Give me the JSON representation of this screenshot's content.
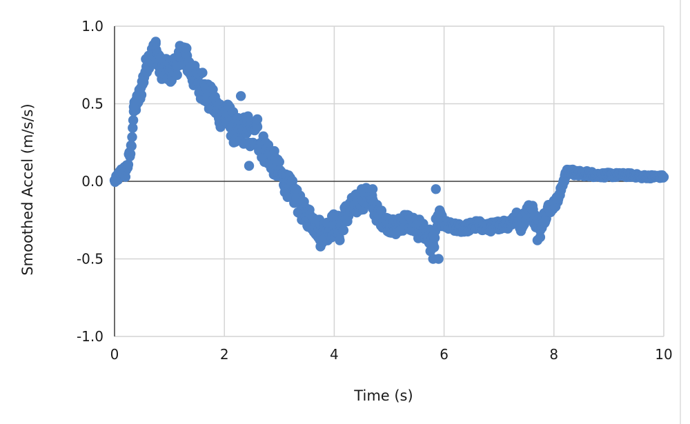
{
  "chart_data": {
    "type": "scatter",
    "xlabel": "Time (s)",
    "ylabel": "Smoothed Accel (m/s/s)",
    "xlim": [
      0,
      10
    ],
    "ylim": [
      -1.0,
      1.0
    ],
    "x_ticks": [
      "0",
      "2",
      "4",
      "6",
      "8",
      "10"
    ],
    "y_ticks": [
      "-1.0",
      "-0.5",
      "0.0",
      "0.5",
      "1.0"
    ],
    "grid": true,
    "legend": "none",
    "series": [
      {
        "color": "#4e81c4",
        "key_points": [
          [
            0.0,
            0.0
          ],
          [
            0.05,
            0.02
          ],
          [
            0.1,
            0.05
          ],
          [
            0.15,
            0.07
          ],
          [
            0.2,
            0.06
          ],
          [
            0.25,
            0.12
          ],
          [
            0.3,
            0.2
          ],
          [
            0.32,
            0.32
          ],
          [
            0.35,
            0.45
          ],
          [
            0.4,
            0.5
          ],
          [
            0.45,
            0.55
          ],
          [
            0.5,
            0.62
          ],
          [
            0.55,
            0.7
          ],
          [
            0.6,
            0.78
          ],
          [
            0.65,
            0.8
          ],
          [
            0.7,
            0.82
          ],
          [
            0.75,
            0.88
          ],
          [
            0.8,
            0.75
          ],
          [
            0.9,
            0.72
          ],
          [
            1.0,
            0.7
          ],
          [
            1.1,
            0.74
          ],
          [
            1.2,
            0.8
          ],
          [
            1.25,
            0.85
          ],
          [
            1.3,
            0.8
          ],
          [
            1.4,
            0.7
          ],
          [
            1.5,
            0.65
          ],
          [
            1.6,
            0.6
          ],
          [
            1.7,
            0.55
          ],
          [
            1.8,
            0.5
          ],
          [
            1.9,
            0.45
          ],
          [
            2.0,
            0.42
          ],
          [
            2.1,
            0.4
          ],
          [
            2.2,
            0.32
          ],
          [
            2.3,
            0.3
          ],
          [
            2.4,
            0.35
          ],
          [
            2.5,
            0.28
          ],
          [
            2.6,
            0.3
          ],
          [
            2.7,
            0.22
          ],
          [
            2.8,
            0.18
          ],
          [
            2.9,
            0.12
          ],
          [
            3.0,
            0.05
          ],
          [
            3.1,
            0.0
          ],
          [
            3.2,
            -0.05
          ],
          [
            3.3,
            -0.1
          ],
          [
            3.4,
            -0.18
          ],
          [
            3.5,
            -0.22
          ],
          [
            3.6,
            -0.25
          ],
          [
            3.7,
            -0.3
          ],
          [
            3.8,
            -0.33
          ],
          [
            3.9,
            -0.3
          ],
          [
            4.0,
            -0.28
          ],
          [
            4.1,
            -0.3
          ],
          [
            4.2,
            -0.22
          ],
          [
            4.3,
            -0.18
          ],
          [
            4.4,
            -0.15
          ],
          [
            4.5,
            -0.12
          ],
          [
            4.6,
            -0.1
          ],
          [
            4.7,
            -0.15
          ],
          [
            4.8,
            -0.22
          ],
          [
            4.9,
            -0.25
          ],
          [
            5.0,
            -0.28
          ],
          [
            5.1,
            -0.3
          ],
          [
            5.2,
            -0.28
          ],
          [
            5.3,
            -0.25
          ],
          [
            5.4,
            -0.27
          ],
          [
            5.5,
            -0.3
          ],
          [
            5.6,
            -0.32
          ],
          [
            5.7,
            -0.35
          ],
          [
            5.8,
            -0.4
          ],
          [
            5.85,
            -0.3
          ],
          [
            5.9,
            -0.22
          ],
          [
            6.0,
            -0.28
          ],
          [
            6.2,
            -0.3
          ],
          [
            6.4,
            -0.3
          ],
          [
            6.6,
            -0.28
          ],
          [
            6.8,
            -0.3
          ],
          [
            7.0,
            -0.28
          ],
          [
            7.2,
            -0.27
          ],
          [
            7.3,
            -0.22
          ],
          [
            7.4,
            -0.28
          ],
          [
            7.5,
            -0.2
          ],
          [
            7.6,
            -0.18
          ],
          [
            7.7,
            -0.3
          ],
          [
            7.8,
            -0.24
          ],
          [
            7.9,
            -0.18
          ],
          [
            8.0,
            -0.15
          ],
          [
            8.1,
            -0.1
          ],
          [
            8.15,
            -0.02
          ],
          [
            8.2,
            0.03
          ],
          [
            8.25,
            0.06
          ],
          [
            8.3,
            0.07
          ],
          [
            8.4,
            0.05
          ],
          [
            8.6,
            0.05
          ],
          [
            8.8,
            0.04
          ],
          [
            9.0,
            0.04
          ],
          [
            9.2,
            0.04
          ],
          [
            9.4,
            0.04
          ],
          [
            9.6,
            0.03
          ],
          [
            9.8,
            0.03
          ],
          [
            10.0,
            0.03
          ]
        ],
        "spread": [
          [
            0.0,
            0.02
          ],
          [
            0.3,
            0.05
          ],
          [
            0.5,
            0.06
          ],
          [
            1.0,
            0.08
          ],
          [
            1.5,
            0.08
          ],
          [
            2.0,
            0.1
          ],
          [
            2.5,
            0.1
          ],
          [
            3.0,
            0.08
          ],
          [
            3.5,
            0.07
          ],
          [
            4.0,
            0.08
          ],
          [
            4.5,
            0.07
          ],
          [
            5.0,
            0.05
          ],
          [
            5.8,
            0.07
          ],
          [
            6.0,
            0.03
          ],
          [
            7.0,
            0.03
          ],
          [
            7.6,
            0.05
          ],
          [
            7.8,
            0.05
          ],
          [
            8.0,
            0.03
          ],
          [
            8.3,
            0.02
          ],
          [
            10.0,
            0.01
          ]
        ],
        "outliers": [
          [
            0.35,
            0.48
          ],
          [
            0.4,
            0.53
          ],
          [
            0.75,
            0.9
          ],
          [
            1.3,
            0.86
          ],
          [
            1.6,
            0.7
          ],
          [
            2.3,
            0.55
          ],
          [
            2.45,
            0.1
          ],
          [
            2.6,
            0.4
          ],
          [
            3.3,
            -0.05
          ],
          [
            3.75,
            -0.42
          ],
          [
            4.1,
            -0.38
          ],
          [
            4.5,
            -0.05
          ],
          [
            4.7,
            -0.05
          ],
          [
            5.2,
            -0.32
          ],
          [
            5.85,
            -0.05
          ],
          [
            5.8,
            -0.5
          ],
          [
            5.75,
            -0.45
          ],
          [
            5.9,
            -0.5
          ],
          [
            7.7,
            -0.38
          ],
          [
            7.75,
            -0.36
          ]
        ]
      }
    ]
  }
}
